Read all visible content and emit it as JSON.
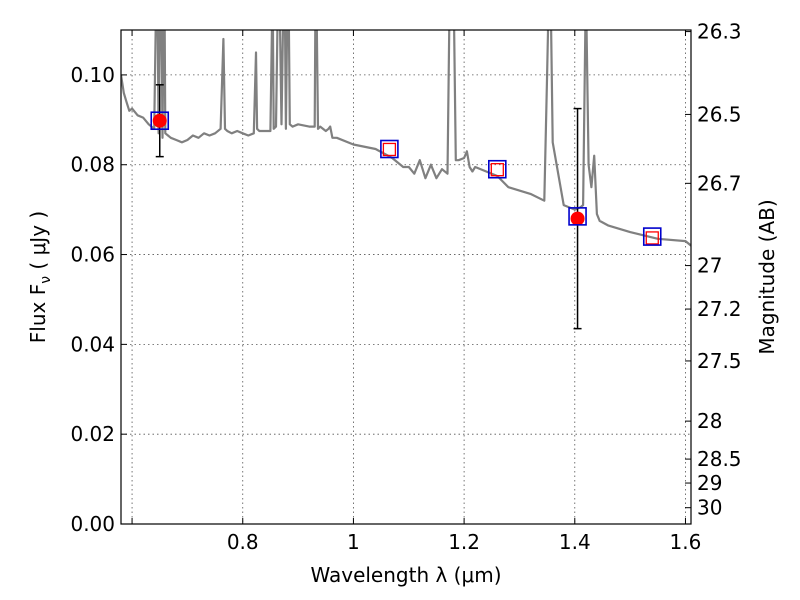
{
  "chart_data": {
    "type": "scatter",
    "title": "",
    "xlabel": "Wavelength  λ (μm)",
    "ylabel": "Flux  F",
    "ylabel_sub": "ν",
    "ylabel_unit": " ( μJy )",
    "ylabel_right": "Magnitude (AB)",
    "xlim": [
      0.58,
      1.61
    ],
    "ylim": [
      0.0,
      0.11
    ],
    "grid": true,
    "x_ticks": [
      {
        "value": 0.6,
        "label": ""
      },
      {
        "value": 0.8,
        "label": "0.8"
      },
      {
        "value": 1.0,
        "label": "1"
      },
      {
        "value": 1.2,
        "label": "1.2"
      },
      {
        "value": 1.4,
        "label": "1.4"
      },
      {
        "value": 1.6,
        "label": "1.6"
      }
    ],
    "y_ticks": [
      {
        "value": 0.0,
        "label": "0.00"
      },
      {
        "value": 0.02,
        "label": "0.02"
      },
      {
        "value": 0.04,
        "label": "0.04"
      },
      {
        "value": 0.06,
        "label": "0.06"
      },
      {
        "value": 0.08,
        "label": "0.08"
      },
      {
        "value": 0.1,
        "label": "0.10"
      }
    ],
    "right_ticks": [
      {
        "mag": 26.3,
        "label": "26.3"
      },
      {
        "mag": 26.5,
        "label": "26.5"
      },
      {
        "mag": 26.7,
        "label": "26.7"
      },
      {
        "mag": 27.0,
        "label": "27"
      },
      {
        "mag": 27.2,
        "label": "27.2"
      },
      {
        "mag": 27.5,
        "label": "27.5"
      },
      {
        "mag": 28.0,
        "label": "28"
      },
      {
        "mag": 28.5,
        "label": "28.5"
      },
      {
        "mag": 29.0,
        "label": "29"
      },
      {
        "mag": 30.0,
        "label": "30"
      }
    ],
    "model_spectrum": {
      "color": "#808080",
      "x": [
        0.58,
        0.585,
        0.59,
        0.595,
        0.6,
        0.61,
        0.62,
        0.63,
        0.64,
        0.645,
        0.648,
        0.652,
        0.655,
        0.658,
        0.66,
        0.665,
        0.67,
        0.68,
        0.69,
        0.7,
        0.71,
        0.72,
        0.73,
        0.74,
        0.75,
        0.76,
        0.765,
        0.768,
        0.772,
        0.78,
        0.79,
        0.8,
        0.81,
        0.82,
        0.824,
        0.826,
        0.83,
        0.84,
        0.85,
        0.854,
        0.856,
        0.86,
        0.865,
        0.87,
        0.875,
        0.878,
        0.882,
        0.885,
        0.89,
        0.9,
        0.92,
        0.93,
        0.932,
        0.936,
        0.94,
        0.95,
        0.955,
        0.958,
        0.962,
        0.97,
        1.0,
        1.04,
        1.07,
        1.09,
        1.1,
        1.11,
        1.12,
        1.13,
        1.14,
        1.15,
        1.16,
        1.17,
        1.175,
        1.18,
        1.185,
        1.19,
        1.2,
        1.205,
        1.21,
        1.215,
        1.22,
        1.26,
        1.28,
        1.32,
        1.345,
        1.35,
        1.355,
        1.36,
        1.38,
        1.39,
        1.4,
        1.41,
        1.415,
        1.42,
        1.425,
        1.43,
        1.435,
        1.44,
        1.445,
        1.46,
        1.5,
        1.55,
        1.6,
        1.61
      ],
      "y": [
        0.1,
        0.096,
        0.094,
        0.092,
        0.0925,
        0.091,
        0.0905,
        0.089,
        0.088,
        0.13,
        0.087,
        0.13,
        0.086,
        0.13,
        0.087,
        0.0865,
        0.086,
        0.0855,
        0.085,
        0.0855,
        0.0865,
        0.086,
        0.087,
        0.0865,
        0.087,
        0.088,
        0.108,
        0.088,
        0.0875,
        0.087,
        0.0875,
        0.087,
        0.0865,
        0.087,
        0.105,
        0.088,
        0.0875,
        0.0875,
        0.0875,
        0.12,
        0.088,
        0.0885,
        0.13,
        0.089,
        0.13,
        0.088,
        0.13,
        0.089,
        0.0885,
        0.089,
        0.0885,
        0.0885,
        0.13,
        0.088,
        0.0885,
        0.0875,
        0.088,
        0.0885,
        0.086,
        0.086,
        0.0845,
        0.0835,
        0.0815,
        0.0795,
        0.0795,
        0.078,
        0.081,
        0.077,
        0.08,
        0.077,
        0.079,
        0.078,
        0.13,
        0.13,
        0.081,
        0.081,
        0.0815,
        0.083,
        0.0795,
        0.0785,
        0.0795,
        0.0775,
        0.075,
        0.0735,
        0.072,
        0.1,
        0.13,
        0.085,
        0.071,
        0.0705,
        0.07,
        0.0705,
        0.071,
        0.12,
        0.08,
        0.075,
        0.082,
        0.069,
        0.0675,
        0.0665,
        0.065,
        0.0635,
        0.063,
        0.062
      ]
    },
    "model_photometry": {
      "color": "#0000cc",
      "x": [
        0.65,
        1.065,
        1.26,
        1.405,
        1.54
      ],
      "y": [
        0.0898,
        0.0835,
        0.079,
        0.0685,
        0.064
      ]
    },
    "observed_photometry": {
      "color": "#ff0000",
      "x": [
        0.65,
        1.065,
        1.26,
        1.405,
        1.54
      ],
      "y": [
        0.0898,
        0.0834,
        0.0789,
        0.068,
        0.0637
      ],
      "filled": [
        true,
        false,
        false,
        true,
        false
      ],
      "err_lo": [
        0.008,
        null,
        null,
        0.0245,
        null
      ],
      "err_hi": [
        0.008,
        null,
        null,
        0.0245,
        null
      ]
    },
    "legend": null
  }
}
